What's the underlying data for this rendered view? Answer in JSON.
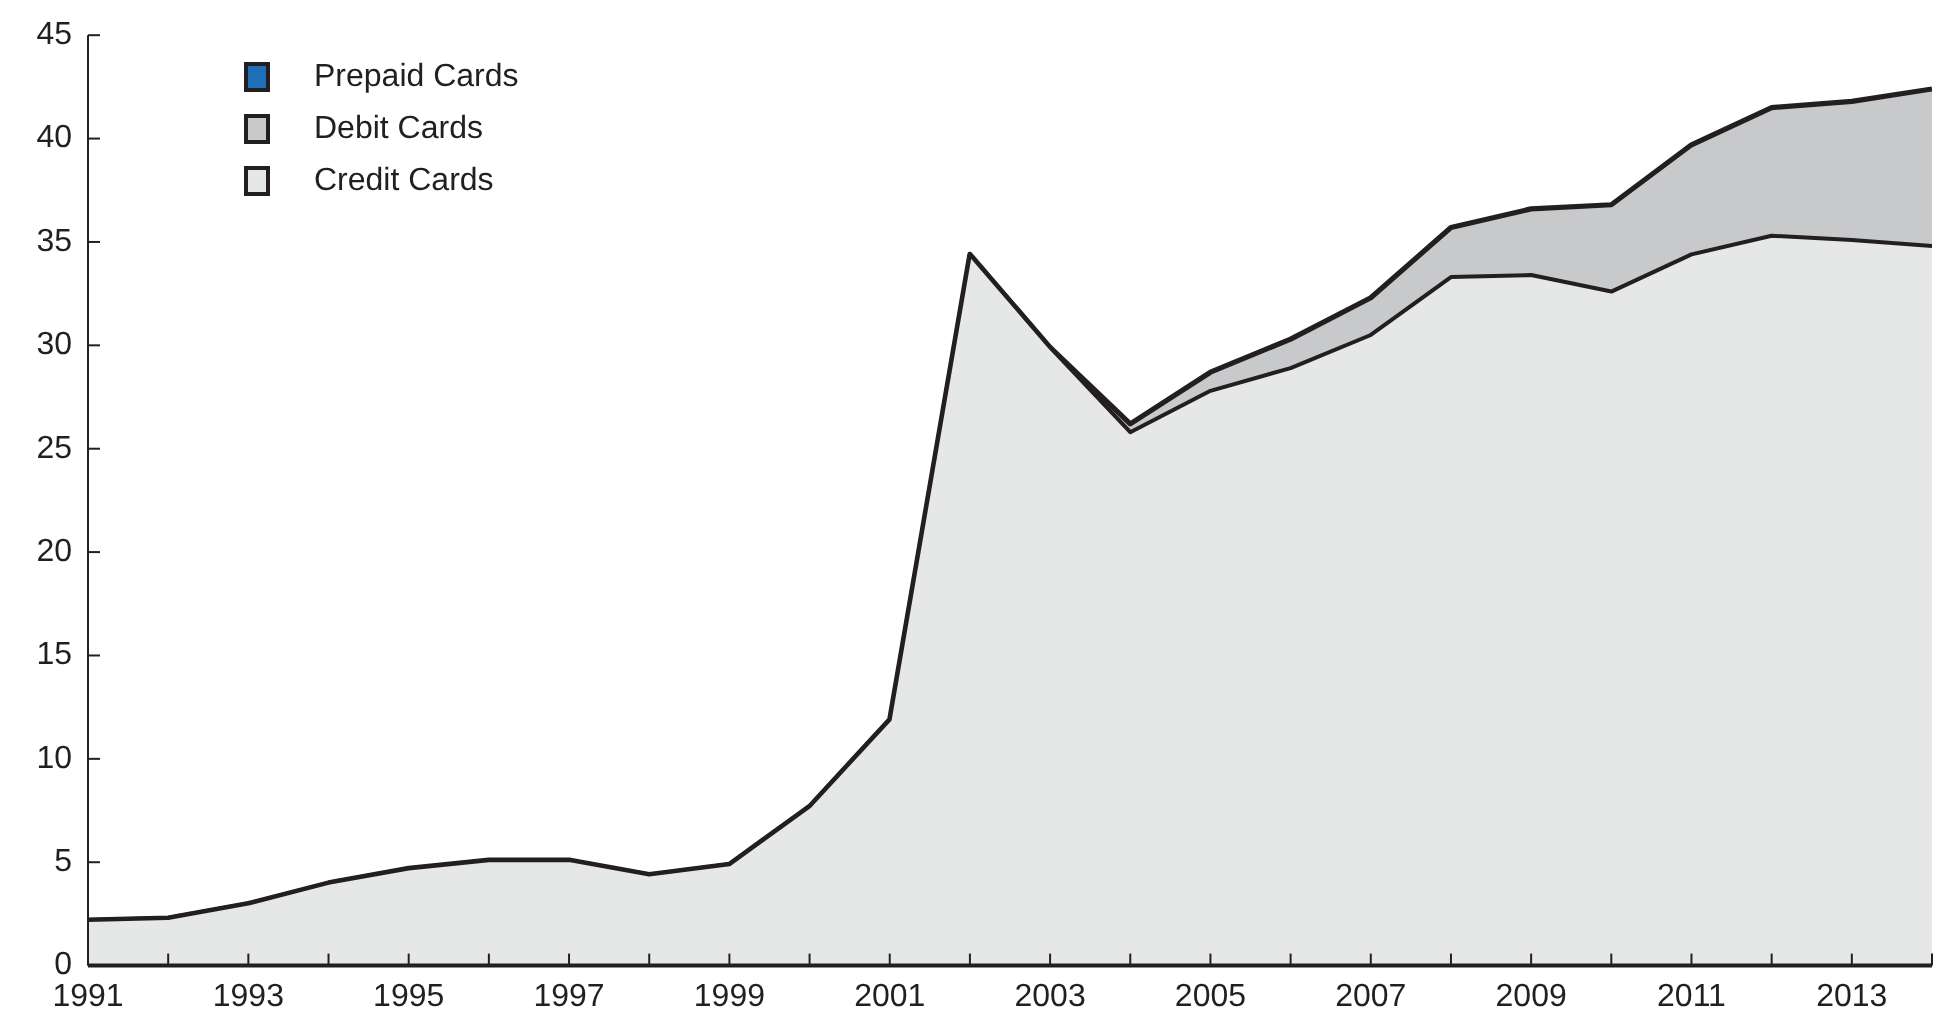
{
  "chart_data": {
    "type": "area",
    "stacked": true,
    "x": [
      1991,
      1992,
      1993,
      1994,
      1995,
      1996,
      1997,
      1998,
      1999,
      2000,
      2001,
      2002,
      2003,
      2004,
      2005,
      2006,
      2007,
      2008,
      2009,
      2010,
      2011,
      2012,
      2013,
      2014
    ],
    "series": [
      {
        "name": "Credit Cards",
        "color": "#e6e8e8",
        "values": [
          2.2,
          2.3,
          3.0,
          4.0,
          4.7,
          5.1,
          5.1,
          4.4,
          4.9,
          7.7,
          11.9,
          34.4,
          29.9,
          25.8,
          27.8,
          28.9,
          30.5,
          33.3,
          33.4,
          32.6,
          34.4,
          35.3,
          35.1,
          34.8
        ]
      },
      {
        "name": "Debit Cards",
        "color": "#c8c9cb",
        "values": [
          0,
          0,
          0,
          0,
          0,
          0,
          0,
          0,
          0,
          0,
          0,
          0,
          0,
          0.4,
          0.9,
          1.4,
          1.8,
          2.4,
          3.2,
          4.2,
          5.3,
          6.2,
          6.7,
          7.6
        ]
      },
      {
        "name": "Prepaid Cards",
        "color": "#1f6fb8",
        "values": [
          null,
          null,
          null,
          null,
          null,
          null,
          null,
          null,
          null,
          null,
          null,
          null,
          null,
          null,
          null,
          null,
          null,
          null,
          null,
          null,
          null,
          null,
          null,
          null
        ]
      }
    ],
    "xlim": [
      1991,
      2014
    ],
    "xticks": [
      {
        "value": 1991,
        "label": "1991"
      },
      {
        "value": 1992,
        "label": null
      },
      {
        "value": 1993,
        "label": "1993"
      },
      {
        "value": 1994,
        "label": null
      },
      {
        "value": 1995,
        "label": "1995"
      },
      {
        "value": 1996,
        "label": null
      },
      {
        "value": 1997,
        "label": "1997"
      },
      {
        "value": 1998,
        "label": null
      },
      {
        "value": 1999,
        "label": "1999"
      },
      {
        "value": 2000,
        "label": null
      },
      {
        "value": 2001,
        "label": "2001"
      },
      {
        "value": 2002,
        "label": null
      },
      {
        "value": 2003,
        "label": "2003"
      },
      {
        "value": 2004,
        "label": null
      },
      {
        "value": 2005,
        "label": "2005"
      },
      {
        "value": 2006,
        "label": null
      },
      {
        "value": 2007,
        "label": "2007"
      },
      {
        "value": 2008,
        "label": null
      },
      {
        "value": 2009,
        "label": "2009"
      },
      {
        "value": 2010,
        "label": null
      },
      {
        "value": 2011,
        "label": "2011"
      },
      {
        "value": 2012,
        "label": null
      },
      {
        "value": 2013,
        "label": "2013"
      },
      {
        "value": 2014,
        "label": null
      }
    ],
    "ylim": [
      0,
      45
    ],
    "yticks": [
      0,
      5,
      10,
      15,
      20,
      25,
      30,
      35,
      40,
      45
    ],
    "grid": false,
    "legend": "top left"
  }
}
